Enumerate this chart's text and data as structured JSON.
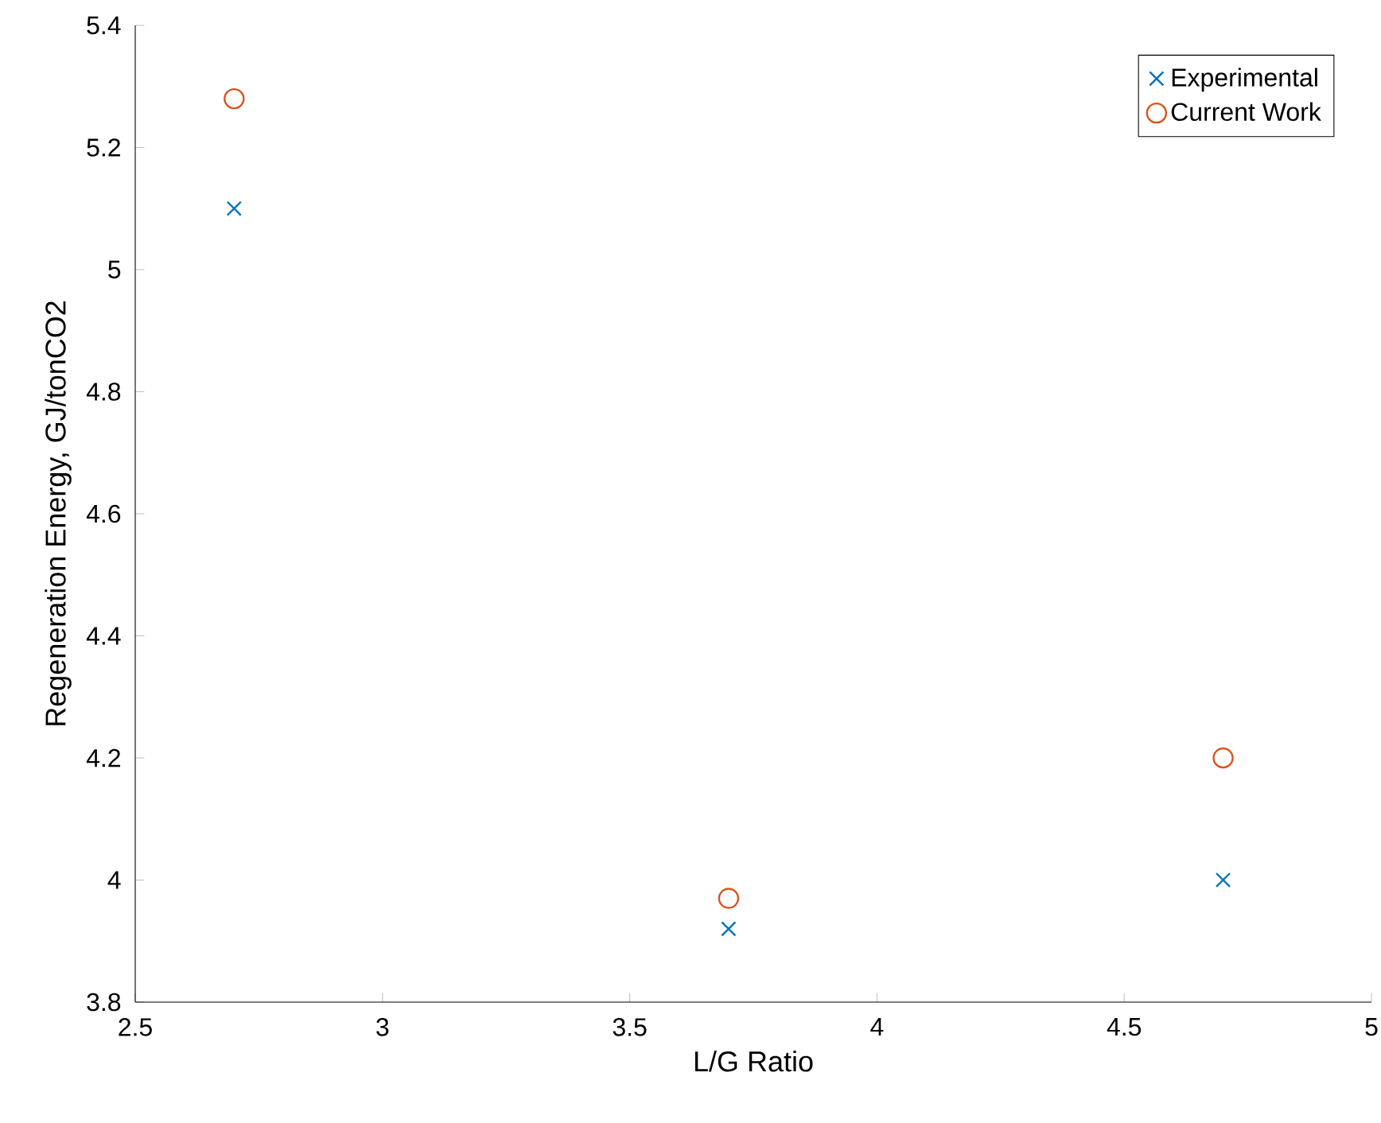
{
  "chart_data": {
    "type": "scatter",
    "xlabel": "L/G Ratio",
    "ylabel": "Regeneration Energy, GJ/tonCO2",
    "x": [
      2.7,
      3.7,
      4.7
    ],
    "series": [
      {
        "name": "Experimental",
        "color": "#0072bd",
        "marker": "cross",
        "values": [
          5.1,
          3.92,
          4.0
        ]
      },
      {
        "name": "Current Work",
        "color": "#d95319",
        "marker": "circle",
        "values": [
          5.28,
          3.97,
          4.2
        ]
      }
    ],
    "xlim": [
      2.5,
      5
    ],
    "xticks": [
      2.5,
      3,
      3.5,
      4,
      4.5,
      5
    ],
    "ylim": [
      3.8,
      5.4
    ],
    "yticks": [
      3.8,
      4,
      4.2,
      4.4,
      4.6,
      4.8,
      5,
      5.2,
      5.4
    ],
    "grid": false,
    "legend": "top right"
  }
}
